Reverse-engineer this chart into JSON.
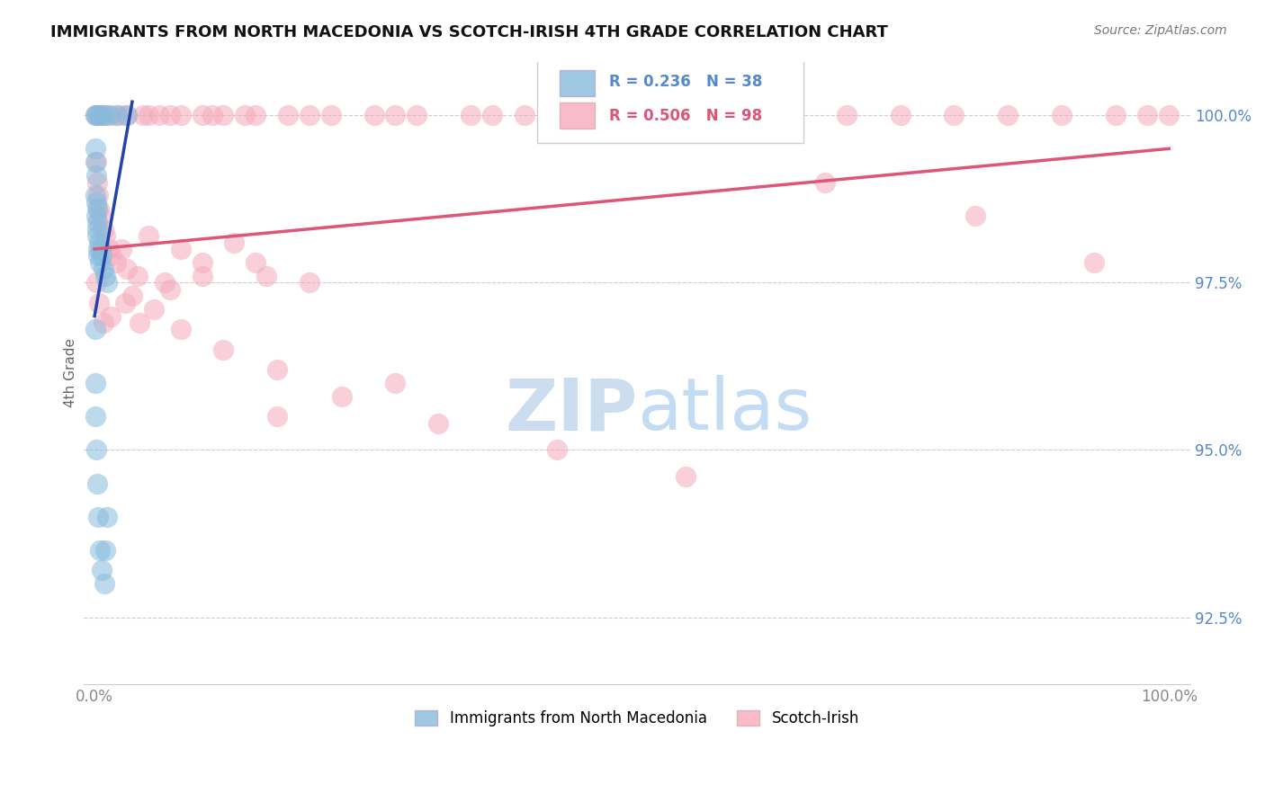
{
  "title": "IMMIGRANTS FROM NORTH MACEDONIA VS SCOTCH-IRISH 4TH GRADE CORRELATION CHART",
  "source_text": "Source: ZipAtlas.com",
  "ylabel": "4th Grade",
  "ylim": [
    91.5,
    100.8
  ],
  "xlim": [
    -1.0,
    102.0
  ],
  "yticks": [
    92.5,
    95.0,
    97.5,
    100.0
  ],
  "ytick_labels": [
    "92.5%",
    "95.0%",
    "97.5%",
    "100.0%"
  ],
  "xtick_left": "0.0%",
  "xtick_right": "100.0%",
  "legend_blue_label": "Immigrants from North Macedonia",
  "legend_pink_label": "Scotch-Irish",
  "r_blue": 0.236,
  "n_blue": 38,
  "r_pink": 0.506,
  "n_pink": 98,
  "blue_color": "#88BBDD",
  "pink_color": "#F5AABC",
  "blue_line_color": "#2244AA",
  "pink_line_color": "#DD5577",
  "watermark_color": "#CCDDEF",
  "title_fontsize": 13,
  "tick_color_y": "#5588CC",
  "tick_color_x": "#888888",
  "legend_box_color": "#EEEEEE"
}
